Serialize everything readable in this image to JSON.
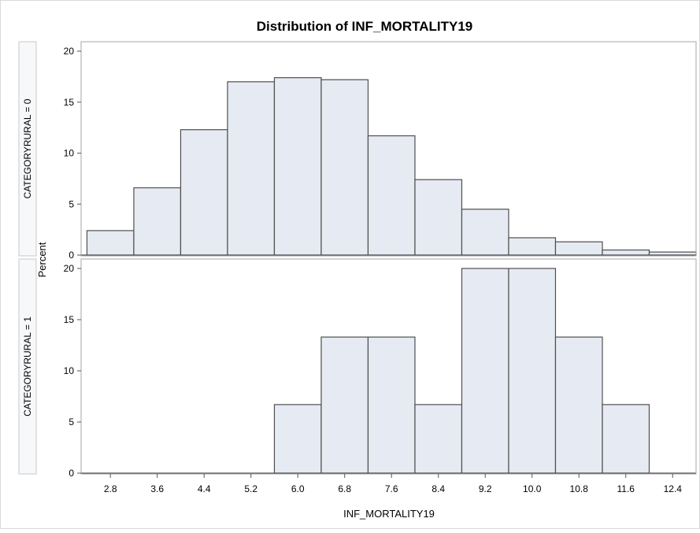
{
  "chart_data": {
    "type": "bar",
    "title": "Distribution of INF_MORTALITY19",
    "xlabel": "INF_MORTALITY19",
    "ylabel": "Percent",
    "x_ticks": [
      "2.8",
      "3.6",
      "4.4",
      "5.2",
      "6.0",
      "6.8",
      "7.6",
      "8.4",
      "9.2",
      "10.0",
      "10.8",
      "11.6",
      "12.4"
    ],
    "x_tick_values": [
      2.8,
      3.6,
      4.4,
      5.2,
      6.0,
      6.8,
      7.6,
      8.4,
      9.2,
      10.0,
      10.8,
      11.6,
      12.4
    ],
    "bin_width": 0.8,
    "bin_starts": [
      2.4,
      3.2,
      4.0,
      4.8,
      5.6,
      6.4,
      7.2,
      8.0,
      8.8,
      9.6,
      10.4,
      11.2,
      12.0
    ],
    "xlim": [
      2.3,
      12.8
    ],
    "grid": false,
    "panels": [
      {
        "label": "CATEGORYRURAL = 0",
        "ylim": [
          0,
          20
        ],
        "y_ticks": [
          "0",
          "5",
          "10",
          "15",
          "20"
        ],
        "values": [
          2.4,
          6.6,
          12.3,
          17.0,
          17.4,
          17.2,
          11.7,
          7.4,
          4.5,
          1.7,
          1.3,
          0.5,
          0.3
        ]
      },
      {
        "label": "CATEGORYRURAL = 1",
        "ylim": [
          0,
          20
        ],
        "y_ticks": [
          "0",
          "5",
          "10",
          "15",
          "20"
        ],
        "values": [
          0,
          0,
          0,
          0,
          6.7,
          13.3,
          13.3,
          6.7,
          20.0,
          20.0,
          13.3,
          6.7,
          0
        ]
      }
    ],
    "colors": {
      "bar_fill": "#e6eaf2",
      "bar_stroke": "#4f4f4f",
      "frame": "#a6a6a6",
      "strip_fill": "#f7f8fa",
      "text": "#000000"
    }
  }
}
